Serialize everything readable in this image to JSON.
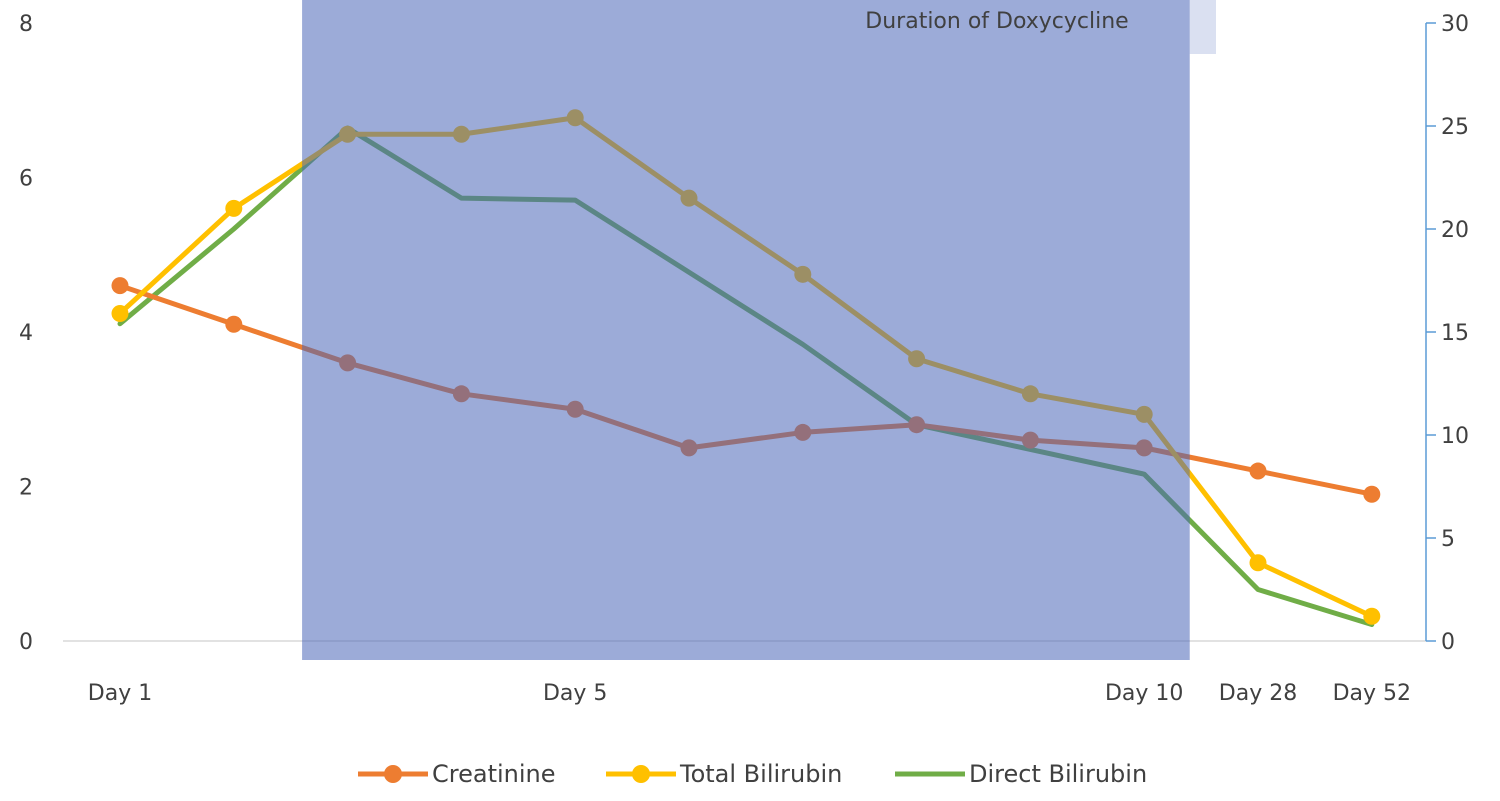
{
  "chart_data": {
    "type": "line",
    "title": "",
    "annotation": "Duration of Doxycycline",
    "x_positions": [
      "Day 1",
      "",
      "",
      "",
      "Day 5",
      "",
      "",
      "",
      "",
      "Day 10",
      "Day 28",
      "Day 52"
    ],
    "xtick_labels": [
      "Day 1",
      "Day 5",
      "Day 10",
      "Day 28",
      "Day 52"
    ],
    "y_left": {
      "ylim": [
        0,
        8
      ],
      "ticks": [
        "0",
        "2",
        "4",
        "6",
        "8"
      ]
    },
    "y_right": {
      "ylim": [
        0,
        30
      ],
      "ticks": [
        "0",
        "5",
        "10",
        "15",
        "20",
        "25",
        "30"
      ]
    },
    "grid": false,
    "legend_position": "bottom",
    "shaded_range": {
      "from_index": 1.6,
      "to_index": 9.4
    },
    "series": [
      {
        "name": "Creatinine",
        "axis": "left",
        "markers": true,
        "values": [
          4.6,
          4.1,
          3.6,
          3.2,
          3.0,
          2.5,
          2.7,
          2.8,
          2.6,
          2.5,
          2.2,
          1.9
        ]
      },
      {
        "name": "Total Bilirubin",
        "axis": "right",
        "markers": true,
        "values": [
          15.9,
          21.0,
          24.6,
          24.6,
          25.4,
          21.5,
          17.8,
          13.7,
          12.0,
          11.0,
          3.8,
          1.2
        ]
      },
      {
        "name": "Direct Bilirubin",
        "axis": "right",
        "markers": false,
        "values": [
          15.4,
          20.0,
          24.9,
          21.5,
          21.4,
          null,
          14.4,
          10.5,
          null,
          8.1,
          2.5,
          0.8
        ]
      }
    ],
    "colors": {
      "Creatinine": "#ED7D31",
      "Total Bilirubin": "#FFC000",
      "Direct Bilirubin": "#70AD47",
      "shade": "#4A66B8",
      "right_axis": "#5B9BD5",
      "axis_line": "#D9D9D9"
    }
  }
}
